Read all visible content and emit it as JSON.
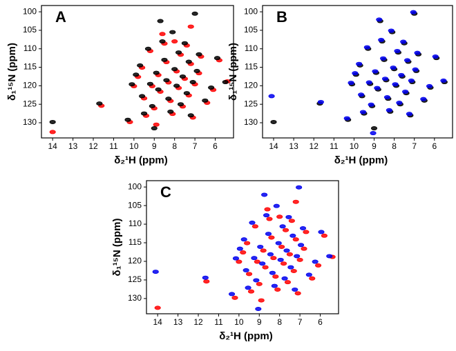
{
  "chart_data": [
    {
      "type": "scatter",
      "title": "A",
      "x_label": "δ₂¹H (ppm)",
      "y_label": "δ₁¹⁵N (ppm)",
      "xlim": [
        14.55,
        5.1
      ],
      "ylim": [
        98.3,
        134.1
      ],
      "xticks": [
        14,
        13,
        12,
        11,
        10,
        9,
        8,
        7,
        6
      ],
      "yticks": [
        100,
        105,
        110,
        115,
        120,
        125,
        130
      ],
      "series": [
        {
          "color": "#ff0000",
          "x": [
            14.0,
            11.6,
            10.2,
            10.0,
            9.8,
            9.6,
            9.5,
            9.4,
            9.2,
            9.1,
            9.0,
            8.9,
            8.8,
            8.7,
            8.6,
            8.5,
            8.4,
            8.3,
            8.2,
            8.1,
            8.0,
            7.9,
            7.8,
            7.7,
            7.6,
            7.5,
            7.4,
            7.3,
            7.2,
            7.1,
            7.0,
            7.2,
            6.8,
            6.7,
            6.4,
            6.1,
            5.8,
            5.4
          ],
          "y": [
            132.5,
            125.4,
            129.8,
            120.1,
            117.6,
            115.1,
            123.4,
            128.1,
            110.6,
            120.1,
            126.1,
            130.5,
            117.1,
            121.6,
            106,
            108.6,
            113.6,
            119.1,
            124.1,
            127.6,
            108,
            116.1,
            120.6,
            111.6,
            125.6,
            118.1,
            109.1,
            122.6,
            114.1,
            128.6,
            119.6,
            104,
            116.6,
            112.1,
            124.6,
            121.1,
            113.1,
            118.8
          ]
        },
        {
          "color": "#000000",
          "x": [
            14.0,
            11.7,
            10.3,
            10.1,
            9.9,
            9.7,
            9.6,
            9.5,
            9.3,
            9.2,
            9.1,
            9.0,
            8.9,
            8.8,
            8.7,
            8.6,
            8.5,
            8.4,
            8.3,
            8.2,
            8.1,
            8.0,
            7.9,
            7.8,
            7.7,
            7.6,
            7.5,
            7.4,
            7.3,
            7.2,
            7.1,
            7.0,
            6.9,
            6.8,
            6.5,
            6.2,
            5.9,
            5.5
          ],
          "y": [
            129.8,
            124.8,
            129.2,
            119.6,
            117,
            114.5,
            122.8,
            127.5,
            110,
            119.5,
            125.5,
            131.5,
            116.5,
            121,
            102.5,
            108,
            113,
            118.5,
            123.5,
            127,
            105.5,
            115.5,
            120,
            111,
            125,
            117.5,
            108.5,
            122,
            113.5,
            128,
            119,
            100.5,
            116,
            111.5,
            124,
            120.5,
            112.5,
            119
          ]
        }
      ]
    },
    {
      "type": "scatter",
      "title": "B",
      "x_label": "δ₂¹H (ppm)",
      "y_label": "δ₁¹⁵N (ppm)",
      "xlim": [
        14.55,
        5.1
      ],
      "ylim": [
        98.3,
        134.1
      ],
      "xticks": [
        14,
        13,
        12,
        11,
        10,
        9,
        8,
        7,
        6
      ],
      "yticks": [
        100,
        105,
        110,
        115,
        120,
        125,
        130
      ],
      "series": [
        {
          "color": "#000000",
          "x": [
            14.0,
            11.7,
            10.3,
            10.1,
            9.9,
            9.7,
            9.6,
            9.5,
            9.3,
            9.2,
            9.1,
            9.0,
            8.9,
            8.8,
            8.7,
            8.6,
            8.5,
            8.4,
            8.3,
            8.2,
            8.1,
            8.0,
            7.9,
            7.8,
            7.7,
            7.6,
            7.5,
            7.4,
            7.3,
            7.2,
            7.1,
            7.0,
            6.9,
            6.8,
            6.5,
            6.2,
            5.9,
            5.5
          ],
          "y": [
            129.8,
            124.8,
            129.2,
            119.6,
            117,
            114.5,
            122.8,
            127.5,
            110,
            119.5,
            125.5,
            131.5,
            116.5,
            121,
            102.5,
            108,
            113,
            118.5,
            123.5,
            127,
            105.5,
            115.5,
            120,
            111,
            125,
            117.5,
            108.5,
            122,
            113.5,
            128,
            119,
            100.5,
            116,
            111.5,
            124,
            120.5,
            112.5,
            119
          ]
        },
        {
          "color": "#0000ee",
          "x": [
            14.1,
            11.65,
            10.35,
            10.15,
            9.95,
            9.75,
            9.65,
            9.55,
            9.35,
            9.25,
            9.15,
            9.05,
            8.95,
            8.85,
            8.75,
            8.65,
            8.55,
            8.45,
            8.35,
            8.25,
            8.15,
            8.05,
            7.95,
            7.85,
            7.75,
            7.65,
            7.55,
            7.45,
            7.35,
            7.25,
            7.15,
            7.05,
            6.95,
            6.85,
            6.55,
            6.25,
            5.95,
            5.55
          ],
          "y": [
            122.8,
            124.4,
            128.8,
            119.2,
            116.6,
            114.1,
            122.4,
            127.1,
            109.6,
            119.1,
            125.1,
            132.8,
            116.1,
            120.6,
            102.1,
            107.6,
            112.6,
            118.1,
            123.1,
            126.6,
            105.1,
            115.1,
            119.6,
            110.6,
            124.6,
            117.1,
            108.1,
            121.6,
            113.1,
            127.6,
            118.6,
            100.1,
            115.6,
            111.1,
            123.6,
            120.1,
            112.1,
            118.6
          ]
        }
      ]
    },
    {
      "type": "scatter",
      "title": "C",
      "x_label": "δ₂¹H (ppm)",
      "y_label": "δ₁¹⁵N (ppm)",
      "xlim": [
        14.55,
        5.1
      ],
      "ylim": [
        98.3,
        134.1
      ],
      "xticks": [
        14,
        13,
        12,
        11,
        10,
        9,
        8,
        7,
        6
      ],
      "yticks": [
        100,
        105,
        110,
        115,
        120,
        125,
        130
      ],
      "series": [
        {
          "color": "#ff0000",
          "x": [
            14.0,
            11.6,
            10.2,
            10.0,
            9.8,
            9.6,
            9.5,
            9.4,
            9.2,
            9.1,
            9.0,
            8.9,
            8.8,
            8.7,
            8.6,
            8.5,
            8.4,
            8.3,
            8.2,
            8.1,
            8.0,
            7.9,
            7.8,
            7.7,
            7.6,
            7.5,
            7.4,
            7.3,
            7.2,
            7.1,
            7.0,
            7.2,
            6.8,
            6.7,
            6.4,
            6.1,
            5.8,
            5.4
          ],
          "y": [
            132.5,
            125.4,
            129.8,
            120.1,
            117.6,
            115.1,
            123.4,
            128.1,
            110.6,
            120.1,
            126.1,
            130.5,
            117.1,
            121.6,
            106,
            108.6,
            113.6,
            119.1,
            124.1,
            127.6,
            108,
            116.1,
            120.6,
            111.6,
            125.6,
            118.1,
            109.1,
            122.6,
            114.1,
            128.6,
            119.6,
            104,
            116.6,
            112.1,
            124.6,
            121.1,
            113.1,
            118.8
          ]
        },
        {
          "color": "#0000ee",
          "x": [
            14.1,
            11.65,
            10.35,
            10.15,
            9.95,
            9.75,
            9.65,
            9.55,
            9.35,
            9.25,
            9.15,
            9.05,
            8.95,
            8.85,
            8.75,
            8.65,
            8.55,
            8.45,
            8.35,
            8.25,
            8.15,
            8.05,
            7.95,
            7.85,
            7.75,
            7.65,
            7.55,
            7.45,
            7.35,
            7.25,
            7.15,
            7.05,
            6.95,
            6.85,
            6.55,
            6.25,
            5.95,
            5.55
          ],
          "y": [
            122.8,
            124.4,
            128.8,
            119.2,
            116.6,
            114.1,
            122.4,
            127.1,
            109.6,
            119.1,
            125.1,
            132.8,
            116.1,
            120.6,
            102.1,
            107.6,
            112.6,
            118.1,
            123.1,
            126.6,
            105.1,
            115.1,
            119.6,
            110.6,
            124.6,
            117.1,
            108.1,
            121.6,
            113.1,
            127.6,
            118.6,
            100.1,
            115.6,
            111.1,
            123.6,
            120.1,
            112.1,
            118.6
          ]
        }
      ]
    }
  ]
}
